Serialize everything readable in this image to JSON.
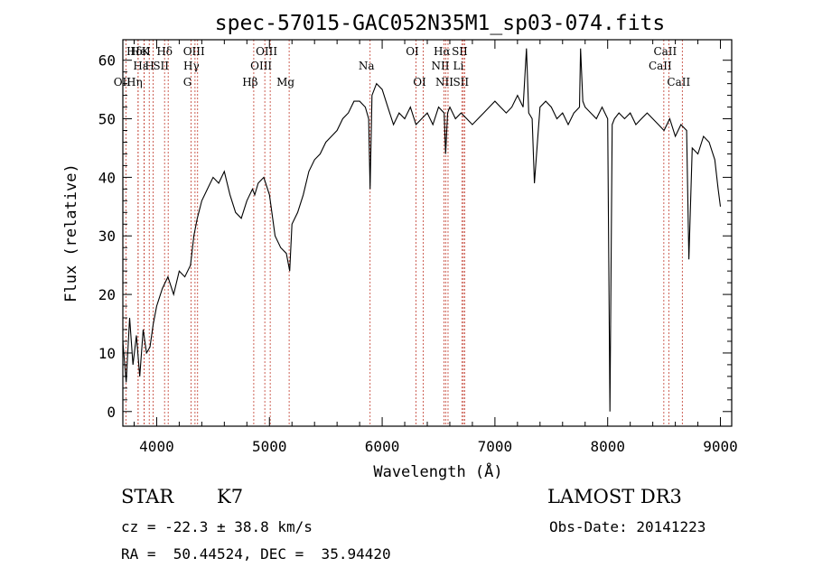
{
  "chart_data": {
    "type": "line",
    "title": "spec-57015-GAC052N35M1_sp03-074.fits",
    "xlabel": "Wavelength (Å)",
    "ylabel": "Flux (relative)",
    "xlim": [
      3700,
      9100
    ],
    "ylim": [
      -2.5,
      63.5
    ],
    "x_ticks": [
      4000,
      5000,
      6000,
      7000,
      8000,
      9000
    ],
    "y_ticks": [
      0,
      10,
      20,
      30,
      40,
      50,
      60
    ],
    "series": [
      {
        "name": "flux",
        "x": [
          3700,
          3730,
          3760,
          3790,
          3820,
          3850,
          3880,
          3910,
          3940,
          3970,
          4000,
          4050,
          4100,
          4150,
          4200,
          4250,
          4300,
          4330,
          4360,
          4400,
          4450,
          4500,
          4550,
          4600,
          4650,
          4700,
          4750,
          4800,
          4850,
          4870,
          4900,
          4950,
          5000,
          5050,
          5100,
          5150,
          5180,
          5200,
          5250,
          5300,
          5350,
          5400,
          5450,
          5500,
          5550,
          5600,
          5650,
          5700,
          5750,
          5800,
          5850,
          5880,
          5893,
          5910,
          5950,
          6000,
          6050,
          6100,
          6150,
          6200,
          6250,
          6300,
          6350,
          6400,
          6450,
          6500,
          6550,
          6563,
          6580,
          6600,
          6650,
          6700,
          6750,
          6800,
          6850,
          6900,
          6950,
          7000,
          7050,
          7100,
          7150,
          7200,
          7250,
          7280,
          7300,
          7330,
          7350,
          7400,
          7450,
          7500,
          7550,
          7600,
          7650,
          7700,
          7750,
          7760,
          7780,
          7800,
          7850,
          7900,
          7950,
          8000,
          8020,
          8040,
          8060,
          8100,
          8150,
          8200,
          8250,
          8300,
          8350,
          8400,
          8450,
          8500,
          8550,
          8600,
          8650,
          8700,
          8720,
          8750,
          8800,
          8850,
          8900,
          8950,
          8980,
          9000
        ],
        "y": [
          12,
          5,
          16,
          8,
          13,
          6,
          14,
          10,
          11,
          15,
          18,
          21,
          23,
          20,
          24,
          23,
          25,
          30,
          33,
          36,
          38,
          40,
          39,
          41,
          37,
          34,
          33,
          36,
          38,
          37,
          39,
          40,
          37,
          30,
          28,
          27,
          24,
          32,
          34,
          37,
          41,
          43,
          44,
          46,
          47,
          48,
          50,
          51,
          53,
          53,
          52,
          50,
          38,
          54,
          56,
          55,
          52,
          49,
          51,
          50,
          52,
          49,
          50,
          51,
          49,
          52,
          51,
          44,
          51,
          52,
          50,
          51,
          50,
          49,
          50,
          51,
          52,
          53,
          52,
          51,
          52,
          54,
          52,
          62,
          51,
          50,
          39,
          52,
          53,
          52,
          50,
          51,
          49,
          51,
          52,
          62,
          53,
          52,
          51,
          50,
          52,
          50,
          0,
          49,
          50,
          51,
          50,
          51,
          49,
          50,
          51,
          50,
          49,
          48,
          50,
          47,
          49,
          48,
          26,
          45,
          44,
          47,
          46,
          43,
          38,
          35
        ]
      }
    ],
    "line_labels": [
      {
        "label": "Hδ",
        "x": 3835
      },
      {
        "label": "K",
        "x": 3934
      },
      {
        "label": "H",
        "x": 3969
      },
      {
        "label": "HeI",
        "x": 3889
      },
      {
        "label": "SII",
        "x": 4070
      },
      {
        "label": "OII",
        "x": 3727
      },
      {
        "label": "Hε",
        "x": 3890
      },
      {
        "label": "Hη",
        "x": 3835
      },
      {
        "label": "Hδ",
        "x": 4102
      },
      {
        "label": "OIII",
        "x": 4363
      },
      {
        "label": "Hγ",
        "x": 4340
      },
      {
        "label": "G",
        "x": 4305
      },
      {
        "label": "Hβ",
        "x": 4861
      },
      {
        "label": "OIII",
        "x": 5007
      },
      {
        "label": "OIII",
        "x": 4959
      },
      {
        "label": "Mg",
        "x": 5175
      },
      {
        "label": "Na",
        "x": 5893
      },
      {
        "label": "OI",
        "x": 6300
      },
      {
        "label": "OI",
        "x": 6364
      },
      {
        "label": "Hα",
        "x": 6563
      },
      {
        "label": "SII",
        "x": 6720
      },
      {
        "label": "NII",
        "x": 6548
      },
      {
        "label": "Li",
        "x": 6708
      },
      {
        "label": "NII",
        "x": 6584
      },
      {
        "label": "SII",
        "x": 6731
      },
      {
        "label": "CaII",
        "x": 8542
      },
      {
        "label": "CaII",
        "x": 8498
      },
      {
        "label": "CaII",
        "x": 8662
      }
    ],
    "grid": false
  },
  "info": {
    "class_label": "STAR",
    "subclass": "K7",
    "survey": "LAMOST DR3",
    "cz": "cz = -22.3 ± 38.8 km/s",
    "obs_date": "Obs-Date: 20141223",
    "coords": "RA =  50.44524, DEC =  35.94420"
  }
}
